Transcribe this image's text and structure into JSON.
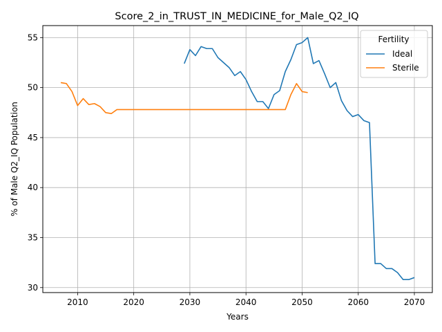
{
  "chart_data": {
    "type": "line",
    "title": "Score_2_in_TRUST_IN_MEDICINE_for_Male_Q2_IQ",
    "xlabel": "Years",
    "ylabel": "% of Male Q2_IQ Population",
    "xlim": [
      2003.8,
      2073.2
    ],
    "ylim": [
      29.5,
      56.2
    ],
    "xticks": [
      2010,
      2020,
      2030,
      2040,
      2050,
      2060,
      2070
    ],
    "yticks": [
      30,
      35,
      40,
      45,
      50,
      55
    ],
    "grid": true,
    "legend": {
      "title": "Fertility",
      "position": "top-right"
    },
    "series": [
      {
        "name": "Ideal",
        "color": "#1f77b4",
        "x": [
          2029,
          2030,
          2031,
          2032,
          2033,
          2034,
          2035,
          2036,
          2037,
          2038,
          2039,
          2040,
          2041,
          2042,
          2043,
          2044,
          2045,
          2046,
          2047,
          2048,
          2049,
          2050,
          2051,
          2052,
          2053,
          2054,
          2055,
          2056,
          2057,
          2058,
          2059,
          2060,
          2061,
          2062,
          2063,
          2064,
          2065,
          2066,
          2067,
          2068,
          2069,
          2070
        ],
        "y": [
          52.4,
          53.8,
          53.2,
          54.1,
          53.9,
          53.9,
          53.0,
          52.5,
          52.0,
          51.2,
          51.6,
          50.8,
          49.6,
          48.6,
          48.6,
          47.9,
          49.3,
          49.7,
          51.6,
          52.8,
          54.3,
          54.5,
          55.0,
          52.4,
          52.7,
          51.4,
          50.0,
          50.5,
          48.7,
          47.7,
          47.1,
          47.3,
          46.7,
          46.5,
          32.4,
          32.4,
          31.9,
          31.9,
          31.5,
          30.8,
          30.8,
          31.0
        ]
      },
      {
        "name": "Sterile",
        "color": "#ff7f0e",
        "x": [
          2007,
          2008,
          2009,
          2010,
          2011,
          2012,
          2013,
          2014,
          2015,
          2016,
          2017,
          2018,
          2019,
          2020,
          2021,
          2022,
          2023,
          2024,
          2025,
          2026,
          2027,
          2028,
          2029,
          2030,
          2031,
          2032,
          2033,
          2034,
          2035,
          2036,
          2037,
          2038,
          2039,
          2040,
          2041,
          2042,
          2043,
          2044,
          2045,
          2046,
          2047,
          2048,
          2049,
          2050,
          2051
        ],
        "y": [
          50.5,
          50.4,
          49.6,
          48.2,
          48.9,
          48.3,
          48.4,
          48.1,
          47.5,
          47.4,
          47.8,
          47.8,
          47.8,
          47.8,
          47.8,
          47.8,
          47.8,
          47.8,
          47.8,
          47.8,
          47.8,
          47.8,
          47.8,
          47.8,
          47.8,
          47.8,
          47.8,
          47.8,
          47.8,
          47.8,
          47.8,
          47.8,
          47.8,
          47.8,
          47.8,
          47.8,
          47.8,
          47.8,
          47.8,
          47.8,
          47.8,
          49.3,
          50.4,
          49.6,
          49.5
        ]
      }
    ]
  }
}
